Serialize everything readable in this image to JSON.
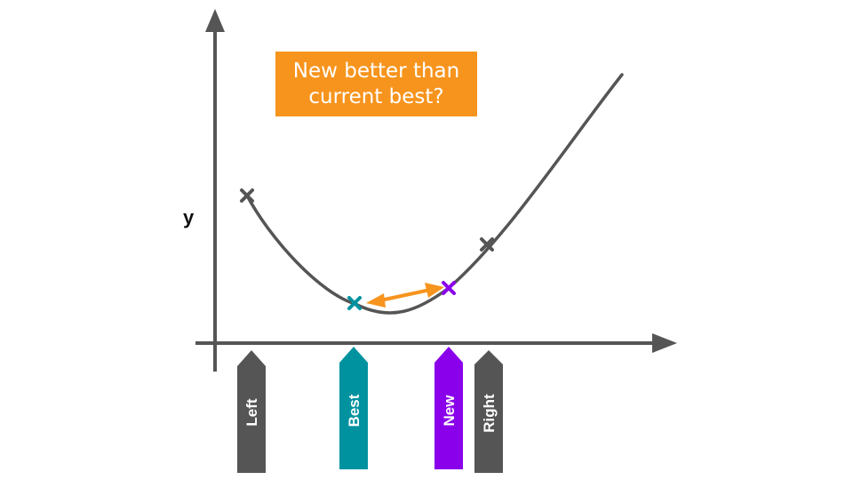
{
  "callout": {
    "text": "New better than\ncurrent best?",
    "color": "#f7941d"
  },
  "axes": {
    "y_label": "y",
    "color": "#555555"
  },
  "points": [
    {
      "name": "left-point",
      "color": "#555555"
    },
    {
      "name": "best-point",
      "color": "#00929f"
    },
    {
      "name": "new-point",
      "color": "#8a00ea"
    },
    {
      "name": "right-point",
      "color": "#555555"
    }
  ],
  "comparison_arrow": {
    "color": "#f7941d"
  },
  "markers": [
    {
      "label": "Left",
      "color": "#555555"
    },
    {
      "label": "Best",
      "color": "#00929f"
    },
    {
      "label": "New",
      "color": "#8a00ea"
    },
    {
      "label": "Right",
      "color": "#555555"
    }
  ]
}
